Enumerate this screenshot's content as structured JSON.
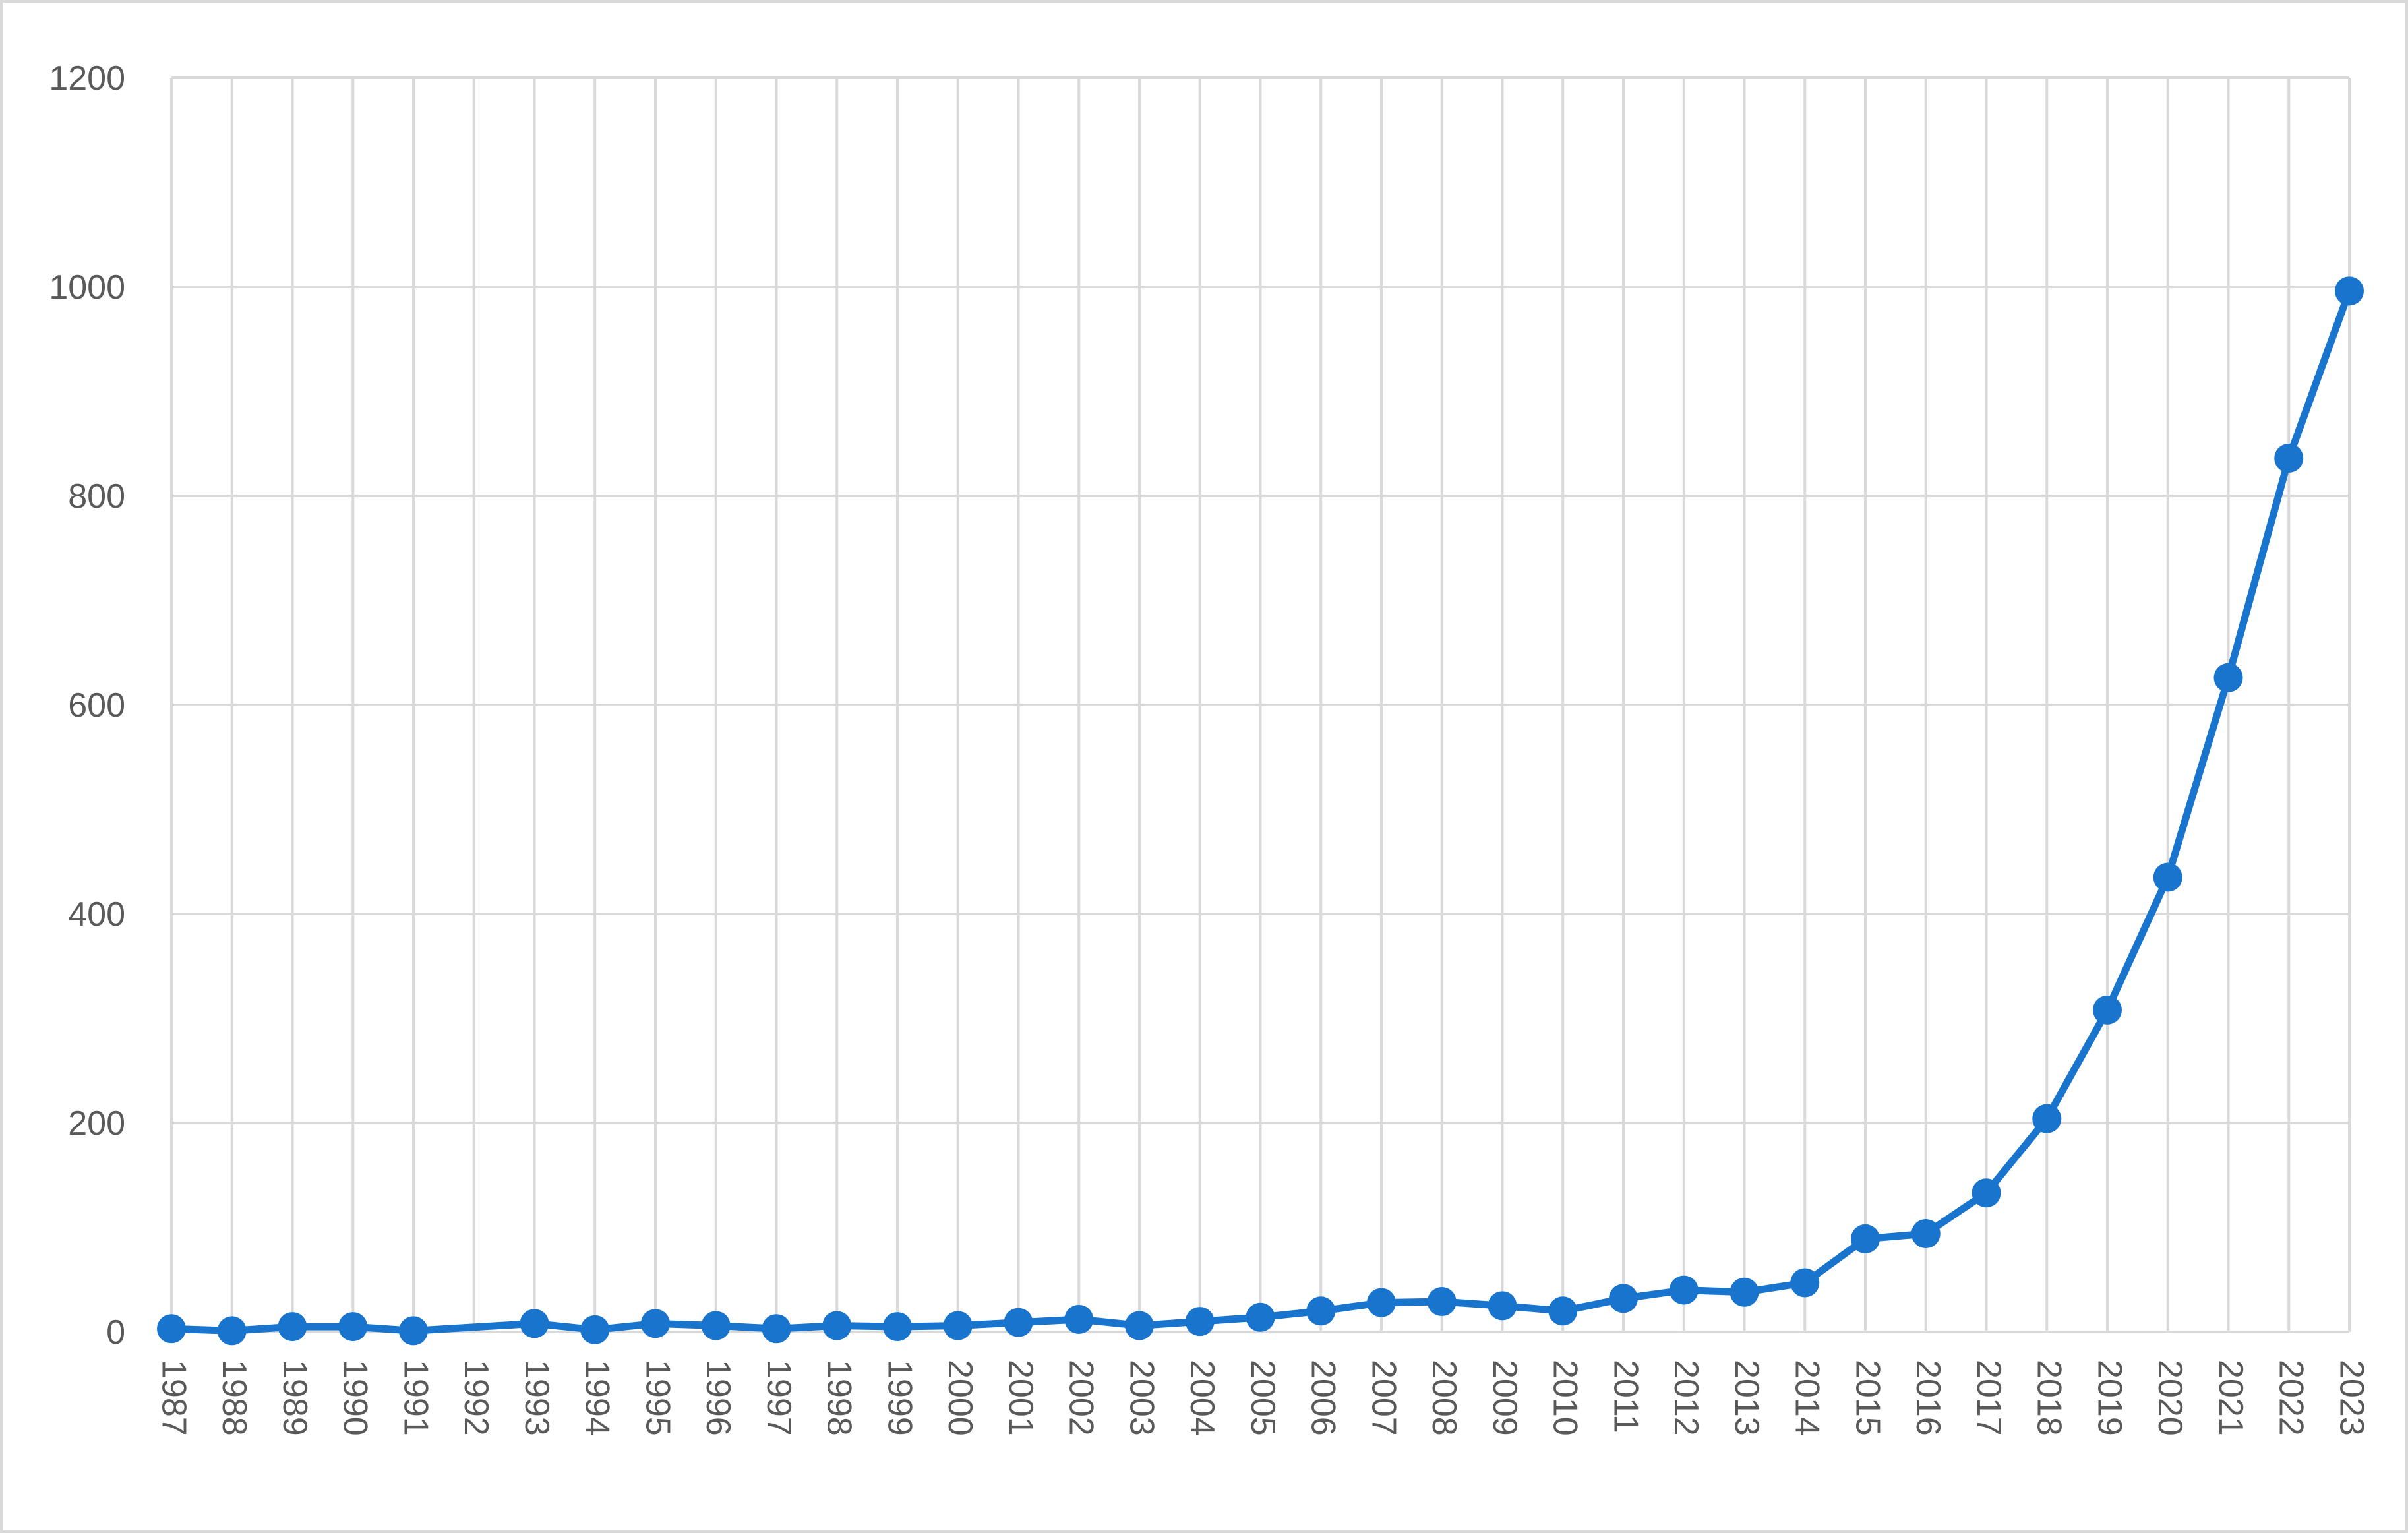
{
  "chart_data": {
    "type": "line",
    "title": "",
    "xlabel": "",
    "ylabel": "",
    "ylim": [
      0,
      1200
    ],
    "yticks": [
      0,
      200,
      400,
      600,
      800,
      1000,
      1200
    ],
    "grid": true,
    "legend": "none",
    "colors": {
      "series": "#1874cd",
      "grid": "#d9d9d9",
      "tick_text": "#595959",
      "border": "#d9d9d9"
    },
    "x": [
      "1987",
      "1988",
      "1989",
      "1990",
      "1991",
      "1992",
      "1993",
      "1994",
      "1995",
      "1996",
      "1997",
      "1998",
      "1999",
      "2000",
      "2001",
      "2002",
      "2003",
      "2004",
      "2005",
      "2006",
      "2007",
      "2008",
      "2009",
      "2010",
      "2011",
      "2012",
      "2013",
      "2014",
      "2015",
      "2016",
      "2017",
      "2018",
      "2019",
      "2020",
      "2021",
      "2022",
      "2023"
    ],
    "series": [
      {
        "name": "",
        "values": [
          3,
          1,
          5,
          5,
          1,
          null,
          8,
          2,
          8,
          6,
          3,
          6,
          5,
          6,
          9,
          12,
          6,
          10,
          14,
          20,
          28,
          29,
          25,
          20,
          32,
          40,
          38,
          47,
          89,
          94,
          133,
          204,
          308,
          435,
          626,
          836,
          996
        ]
      }
    ]
  }
}
